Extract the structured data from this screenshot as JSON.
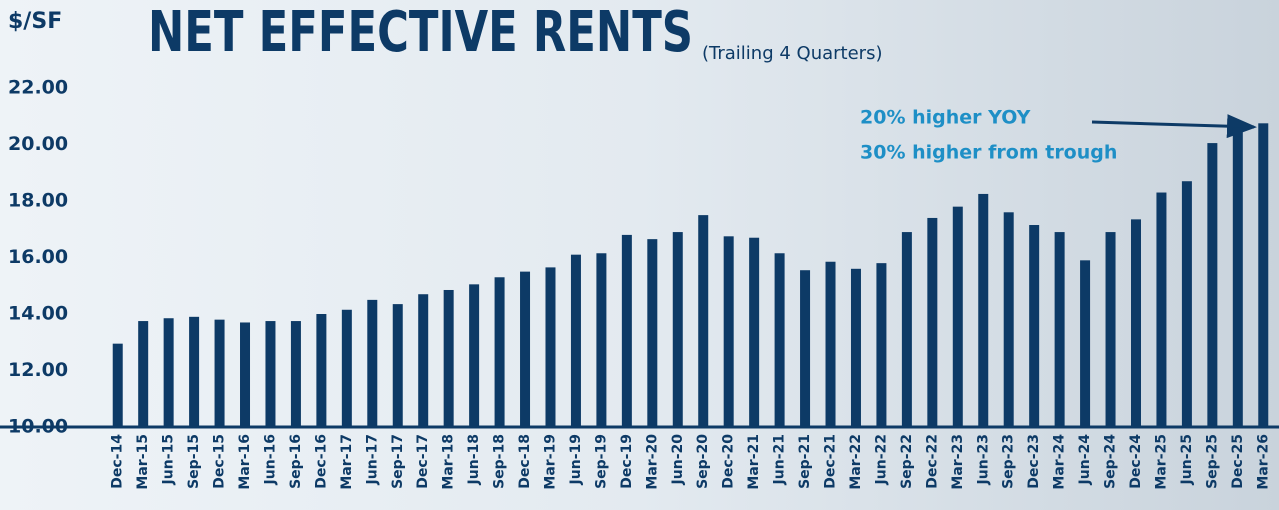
{
  "chart_data": {
    "type": "bar",
    "title": "NET EFFECTIVE RENTS",
    "subtitle": "(Trailing 4 Quarters)",
    "y_label": "$/SF",
    "annotations": [
      "20% higher YOY",
      "30% higher from trough"
    ],
    "categories": [
      "Dec-14",
      "Mar-15",
      "Jun-15",
      "Sep-15",
      "Dec-15",
      "Mar-16",
      "Jun-16",
      "Sep-16",
      "Dec-16",
      "Mar-17",
      "Jun-17",
      "Sep-17",
      "Dec-17",
      "Mar-18",
      "Jun-18",
      "Sep-18",
      "Dec-18",
      "Mar-19",
      "Jun-19",
      "Sep-19",
      "Dec-19",
      "Mar-20",
      "Jun-20",
      "Sep-20",
      "Dec-20",
      "Mar-21",
      "Jun-21",
      "Sep-21",
      "Dec-21",
      "Mar-22",
      "Jun-22",
      "Sep-22",
      "Dec-22",
      "Mar-23",
      "Jun-23",
      "Sep-23",
      "Dec-23",
      "Mar-24",
      "Jun-24",
      "Sep-24",
      "Dec-24",
      "Mar-25",
      "Jun-25",
      "Sep-25",
      "Dec-25",
      "Mar-26"
    ],
    "values": [
      12.95,
      13.75,
      13.85,
      13.9,
      13.8,
      13.7,
      13.75,
      13.75,
      14.0,
      14.15,
      14.5,
      14.35,
      14.7,
      14.85,
      15.05,
      15.3,
      15.5,
      15.65,
      16.1,
      16.15,
      16.8,
      16.65,
      16.9,
      17.5,
      16.75,
      16.7,
      16.15,
      15.55,
      15.85,
      15.6,
      15.8,
      16.9,
      17.4,
      17.8,
      18.25,
      17.6,
      17.15,
      16.9,
      15.9,
      16.9,
      17.35,
      18.3,
      18.7,
      20.05,
      20.6,
      20.75
    ],
    "color": "#0d3a66",
    "ylim": [
      10,
      22
    ],
    "yticks": [
      {
        "value": 10,
        "label": "10.00"
      },
      {
        "value": 12,
        "label": "12.00"
      },
      {
        "value": 14,
        "label": "14.00"
      },
      {
        "value": 16,
        "label": "16.00"
      },
      {
        "value": 18,
        "label": "18.00"
      },
      {
        "value": 20,
        "label": "20.00"
      },
      {
        "value": 22,
        "label": "22.00"
      }
    ],
    "grid": false
  }
}
